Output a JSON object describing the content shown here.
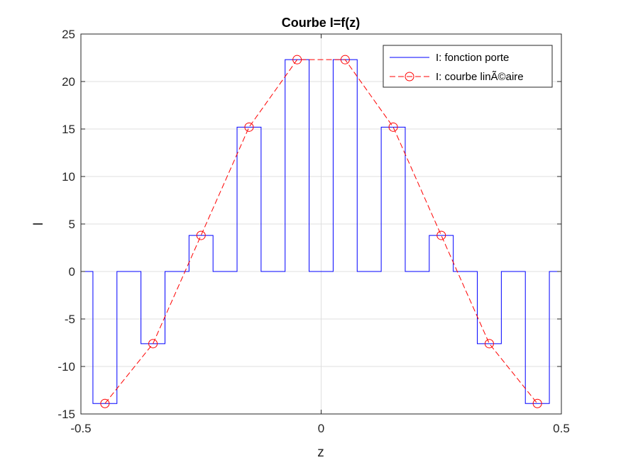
{
  "chart_data": {
    "type": "line",
    "title": "Courbe I=f(z)",
    "xlabel": "z",
    "ylabel": "I",
    "xlim": [
      -0.5,
      0.5
    ],
    "ylim": [
      -15,
      25
    ],
    "xticks": [
      -0.5,
      0,
      0.5
    ],
    "xtick_labels": [
      "-0.5",
      "0",
      "0.5"
    ],
    "yticks": [
      -15,
      -10,
      -5,
      0,
      5,
      10,
      15,
      20,
      25
    ],
    "ytick_labels": [
      "-15",
      "-10",
      "-5",
      "0",
      "5",
      "10",
      "15",
      "20",
      "25"
    ],
    "grid": true,
    "legend_position": "top-right",
    "series": [
      {
        "name": "I: fonction porte",
        "color": "#0000ff",
        "line_style": "solid",
        "marker": "none",
        "x": [
          -0.5,
          -0.475,
          -0.475,
          -0.425,
          -0.425,
          -0.375,
          -0.375,
          -0.325,
          -0.325,
          -0.275,
          -0.275,
          -0.225,
          -0.225,
          -0.175,
          -0.175,
          -0.125,
          -0.125,
          -0.075,
          -0.075,
          -0.025,
          -0.025,
          0.025,
          0.025,
          0.075,
          0.075,
          0.125,
          0.125,
          0.175,
          0.175,
          0.225,
          0.225,
          0.275,
          0.275,
          0.325,
          0.325,
          0.375,
          0.375,
          0.425,
          0.425,
          0.475,
          0.475,
          0.5
        ],
        "y": [
          0,
          0,
          -13.9,
          -13.9,
          0,
          0,
          -7.6,
          -7.6,
          0,
          0,
          3.8,
          3.8,
          0,
          0,
          15.2,
          15.2,
          0,
          0,
          22.3,
          22.3,
          0,
          0,
          22.3,
          22.3,
          0,
          0,
          15.2,
          15.2,
          0,
          0,
          3.8,
          3.8,
          0,
          0,
          -7.6,
          -7.6,
          0,
          0,
          -13.9,
          -13.9,
          0,
          0
        ]
      },
      {
        "name": "I: courbe linÃ©aire",
        "color": "#ff0000",
        "line_style": "dashed",
        "marker": "circle",
        "x": [
          -0.45,
          -0.35,
          -0.25,
          -0.15,
          -0.05,
          0.05,
          0.15,
          0.25,
          0.35,
          0.45
        ],
        "y": [
          -13.9,
          -7.6,
          3.8,
          15.2,
          22.3,
          22.3,
          15.2,
          3.8,
          -7.6,
          -13.9
        ]
      }
    ]
  }
}
